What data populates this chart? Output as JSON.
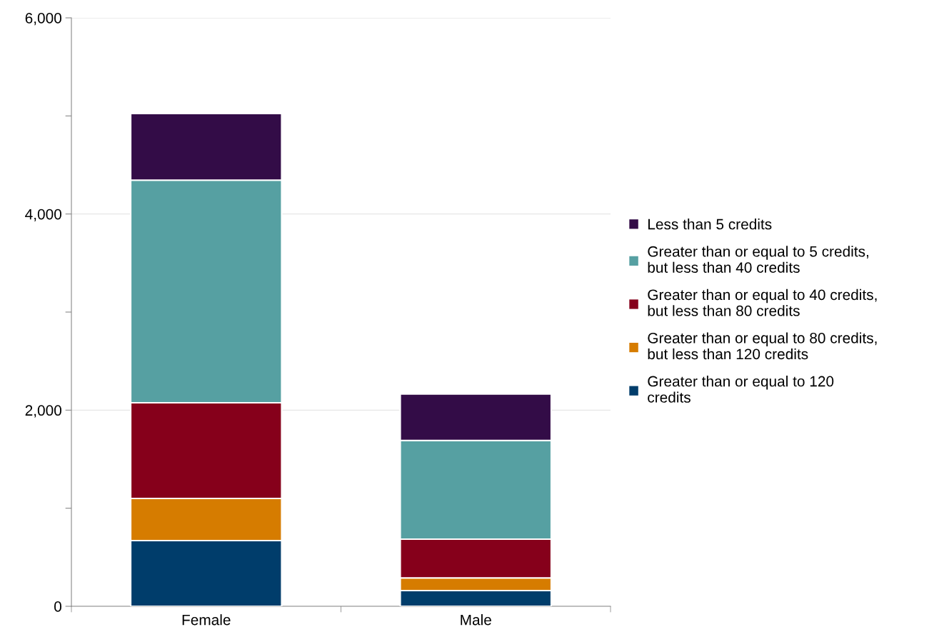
{
  "chart_data": {
    "type": "bar",
    "stacked": true,
    "categories": [
      "Female",
      "Male"
    ],
    "series": [
      {
        "name": "Greater than or equal to 120 credits",
        "color": "#003d6b",
        "values": [
          670,
          160
        ]
      },
      {
        "name": "Greater than or equal to 80 credits, but less than 120 credits",
        "color": "#d67c00",
        "values": [
          430,
          130
        ]
      },
      {
        "name": "Greater than or equal to 40 credits, but less than 80 credits",
        "color": "#86001b",
        "values": [
          975,
          395
        ]
      },
      {
        "name": "Greater than or equal to 5 credits, but less than 40 credits",
        "color": "#56a0a2",
        "values": [
          2270,
          1005
        ]
      },
      {
        "name": "Less than 5 credits",
        "color": "#330c47",
        "values": [
          680,
          475
        ]
      }
    ],
    "ylim": [
      0,
      6000
    ],
    "yticks": [
      0,
      {
        "value": 1000,
        "label": null
      },
      {
        "value": 2000,
        "label": "2,000"
      },
      {
        "value": 3000,
        "label": null
      },
      {
        "value": 4000,
        "label": "4,000"
      },
      {
        "value": 5000,
        "label": null
      },
      {
        "value": 6000,
        "label": "6,000"
      }
    ],
    "grid": "y",
    "legend": "right"
  }
}
